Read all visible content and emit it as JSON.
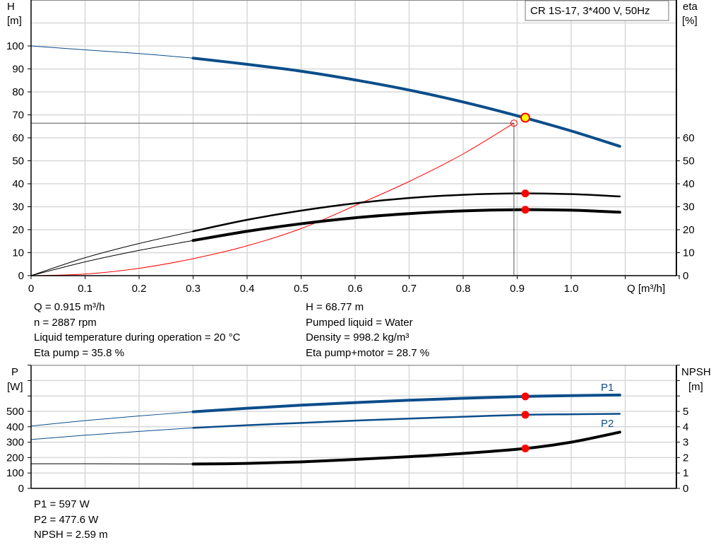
{
  "legend_box": "CR 1S-17, 3*400 V, 50Hz",
  "colors": {
    "head": "#0b4d8a",
    "eta": "#000000",
    "system": "#ff0000",
    "marker": "#ff0000",
    "op_point_fill": "#ffff00",
    "grid": "#d8d8d8"
  },
  "operating_info": {
    "left": [
      "Q = 0.915 m³/h",
      "n = 2887 rpm",
      "Liquid temperature during operation = 20 °C",
      "Eta pump = 35.8 %"
    ],
    "right": [
      "H = 68.77 m",
      "Pumped liquid = Water",
      "Density = 998.2 kg/m³",
      "Eta pump+motor = 28.7 %"
    ]
  },
  "power_info": [
    "P1 = 597 W",
    "P2 = 477.6 W",
    "NPSH = 2.59 m"
  ],
  "chart_data": [
    {
      "type": "line",
      "title": "",
      "xlabel": "Q [m³/h]",
      "ylabel_left": [
        "H",
        "[m]"
      ],
      "ylabel_right": [
        "eta",
        "[%]"
      ],
      "xlim": [
        0,
        1.2
      ],
      "ylim_left": [
        0,
        120
      ],
      "ylim_right": [
        0,
        120
      ],
      "x_ticks": [
        "0",
        "0.1",
        "0.2",
        "0.3",
        "0.4",
        "0.5",
        "0.6",
        "0.7",
        "0.8",
        "0.9",
        "1.0"
      ],
      "y_ticks_left": [
        "0",
        "10",
        "20",
        "30",
        "40",
        "50",
        "60",
        "70",
        "80",
        "90",
        "100"
      ],
      "y_ticks_right": [
        "0",
        "10",
        "20",
        "30",
        "40",
        "50",
        "60"
      ],
      "grid": true,
      "x": [
        0,
        0.1,
        0.2,
        0.3,
        0.4,
        0.5,
        0.6,
        0.7,
        0.8,
        0.9,
        1.0,
        1.09
      ],
      "thin_until_x": 0.3,
      "series": [
        {
          "key": "head",
          "axis": "left",
          "values": [
            100,
            98.3,
            96.7,
            94.7,
            92,
            89,
            85.2,
            80.8,
            75.6,
            69.6,
            63,
            56.3
          ]
        },
        {
          "key": "eta_pump",
          "axis": "right",
          "values": [
            0,
            7.8,
            14,
            19.3,
            24.3,
            28.3,
            31.5,
            33.8,
            35.2,
            35.8,
            35.5,
            34.5
          ]
        },
        {
          "key": "eta_pump_motor",
          "axis": "right",
          "values": [
            0,
            6,
            11,
            15.3,
            19.3,
            22.6,
            25.2,
            27,
            28.2,
            28.7,
            28.5,
            27.6
          ]
        }
      ],
      "system_curve": {
        "x": [
          0,
          0.1,
          0.2,
          0.3,
          0.4,
          0.5,
          0.6,
          0.7,
          0.8,
          0.894
        ],
        "values": [
          0,
          0.7,
          3.2,
          7.4,
          13,
          20.5,
          30.5,
          41,
          53,
          66.4
        ]
      },
      "operating_point": {
        "q": 0.915,
        "h": 68.77,
        "eta_pump": 35.8,
        "eta_pump_motor": 28.7
      },
      "duty_point": {
        "q": 0.894,
        "h": 66.4
      }
    },
    {
      "type": "line",
      "title": "",
      "ylabel_left": [
        "P",
        "[W]"
      ],
      "ylabel_right": [
        "NPSH",
        "[m]"
      ],
      "xlim": [
        0,
        1.2
      ],
      "ylim_left": [
        0,
        800
      ],
      "ylim_right": [
        0,
        8
      ],
      "y_ticks_left": [
        "0",
        "100",
        "200",
        "300",
        "400",
        "500"
      ],
      "y_ticks_right": [
        "0",
        "1",
        "2",
        "3",
        "4",
        "5"
      ],
      "grid": true,
      "x": [
        0,
        0.1,
        0.2,
        0.3,
        0.4,
        0.5,
        0.6,
        0.7,
        0.8,
        0.915,
        1.0,
        1.09
      ],
      "thin_until_x": 0.3,
      "series": [
        {
          "key": "p1",
          "name": "P1",
          "axis": "left",
          "values": [
            405,
            440,
            470,
            497,
            520,
            540,
            557,
            572,
            585,
            597,
            602,
            606
          ]
        },
        {
          "key": "p2",
          "name": "P2",
          "axis": "left",
          "values": [
            317,
            345,
            370,
            393,
            410,
            425,
            440,
            453,
            465,
            477.6,
            481,
            484
          ]
        },
        {
          "key": "npsh",
          "axis": "right",
          "values": [
            1.6,
            1.6,
            1.59,
            1.58,
            1.62,
            1.72,
            1.88,
            2.06,
            2.27,
            2.59,
            3.0,
            3.65
          ]
        }
      ],
      "operating_point": {
        "q": 0.915,
        "p1": 597,
        "p2": 477.6,
        "npsh": 2.59
      }
    }
  ]
}
